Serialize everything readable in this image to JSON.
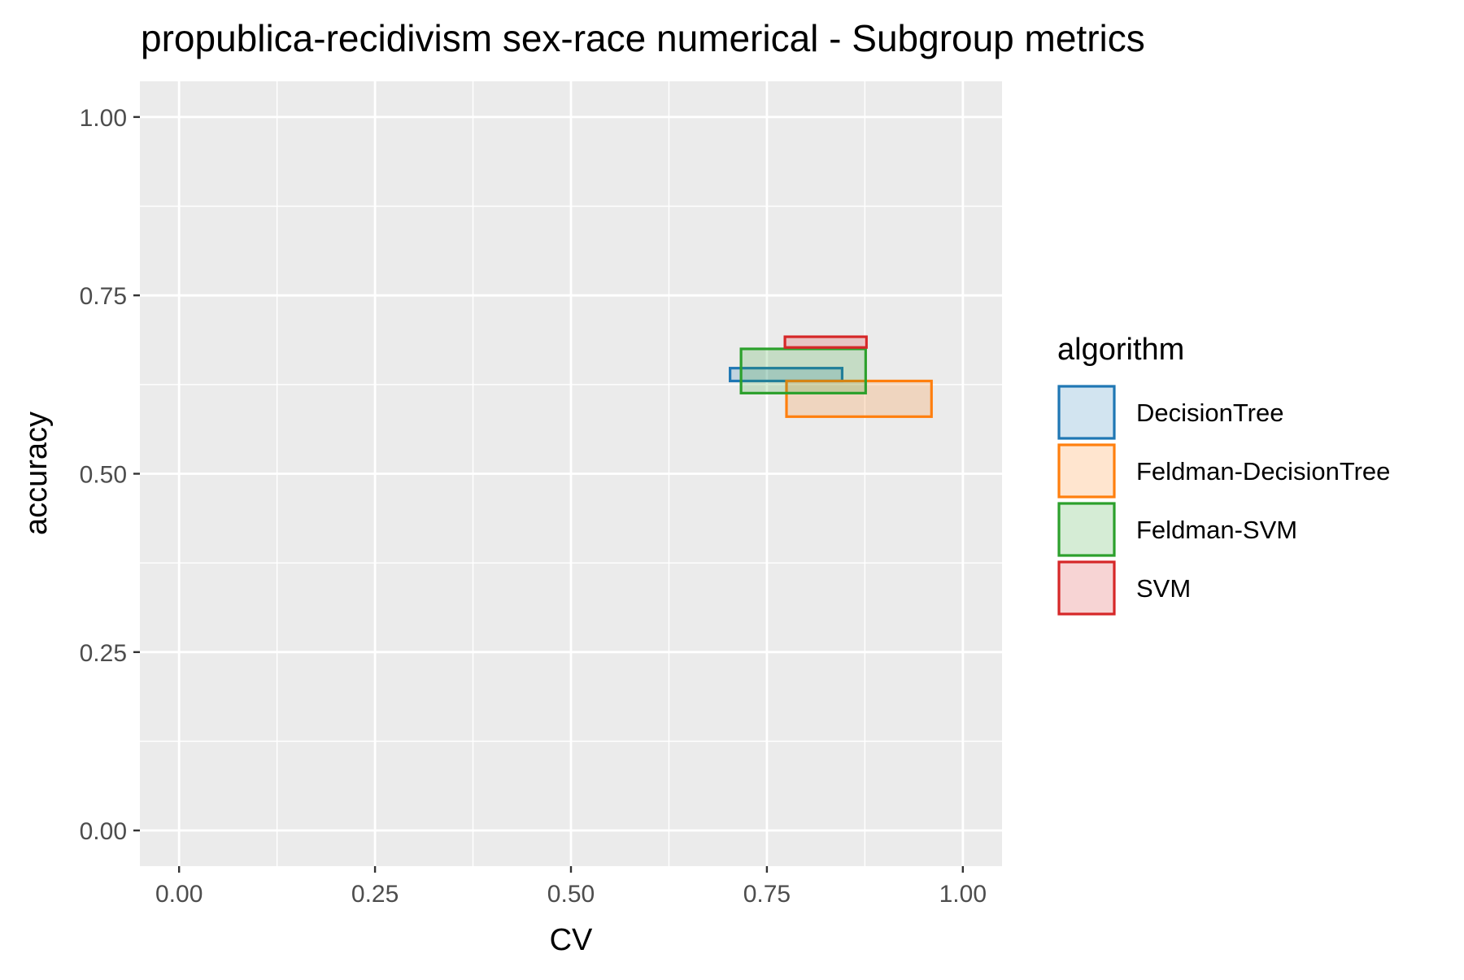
{
  "chart_data": {
    "type": "rect-range",
    "title": "propublica-recidivism sex-race numerical - Subgroup metrics",
    "xlabel": "CV",
    "ylabel": "accuracy",
    "xlim": [
      -0.05,
      1.05
    ],
    "ylim": [
      -0.05,
      1.05
    ],
    "x_ticks": [
      0.0,
      0.25,
      0.5,
      0.75,
      1.0
    ],
    "x_tick_labels": [
      "0.00",
      "0.25",
      "0.50",
      "0.75",
      "1.00"
    ],
    "y_ticks": [
      0.0,
      0.25,
      0.5,
      0.75,
      1.0
    ],
    "y_tick_labels": [
      "0.00",
      "0.25",
      "0.50",
      "0.75",
      "1.00"
    ],
    "grid": true,
    "legend": {
      "title": "algorithm",
      "placement": "right"
    },
    "series": [
      {
        "name": "DecisionTree",
        "color": "#1f77b4",
        "x": [
          0.703,
          0.846
        ],
        "y": [
          0.63,
          0.648
        ]
      },
      {
        "name": "Feldman-DecisionTree",
        "color": "#ff7f0e",
        "x": [
          0.775,
          0.96
        ],
        "y": [
          0.58,
          0.63
        ]
      },
      {
        "name": "Feldman-SVM",
        "color": "#2ca02c",
        "x": [
          0.717,
          0.876
        ],
        "y": [
          0.613,
          0.675
        ]
      },
      {
        "name": "SVM",
        "color": "#d62728",
        "x": [
          0.773,
          0.877
        ],
        "y": [
          0.677,
          0.692
        ]
      }
    ]
  }
}
